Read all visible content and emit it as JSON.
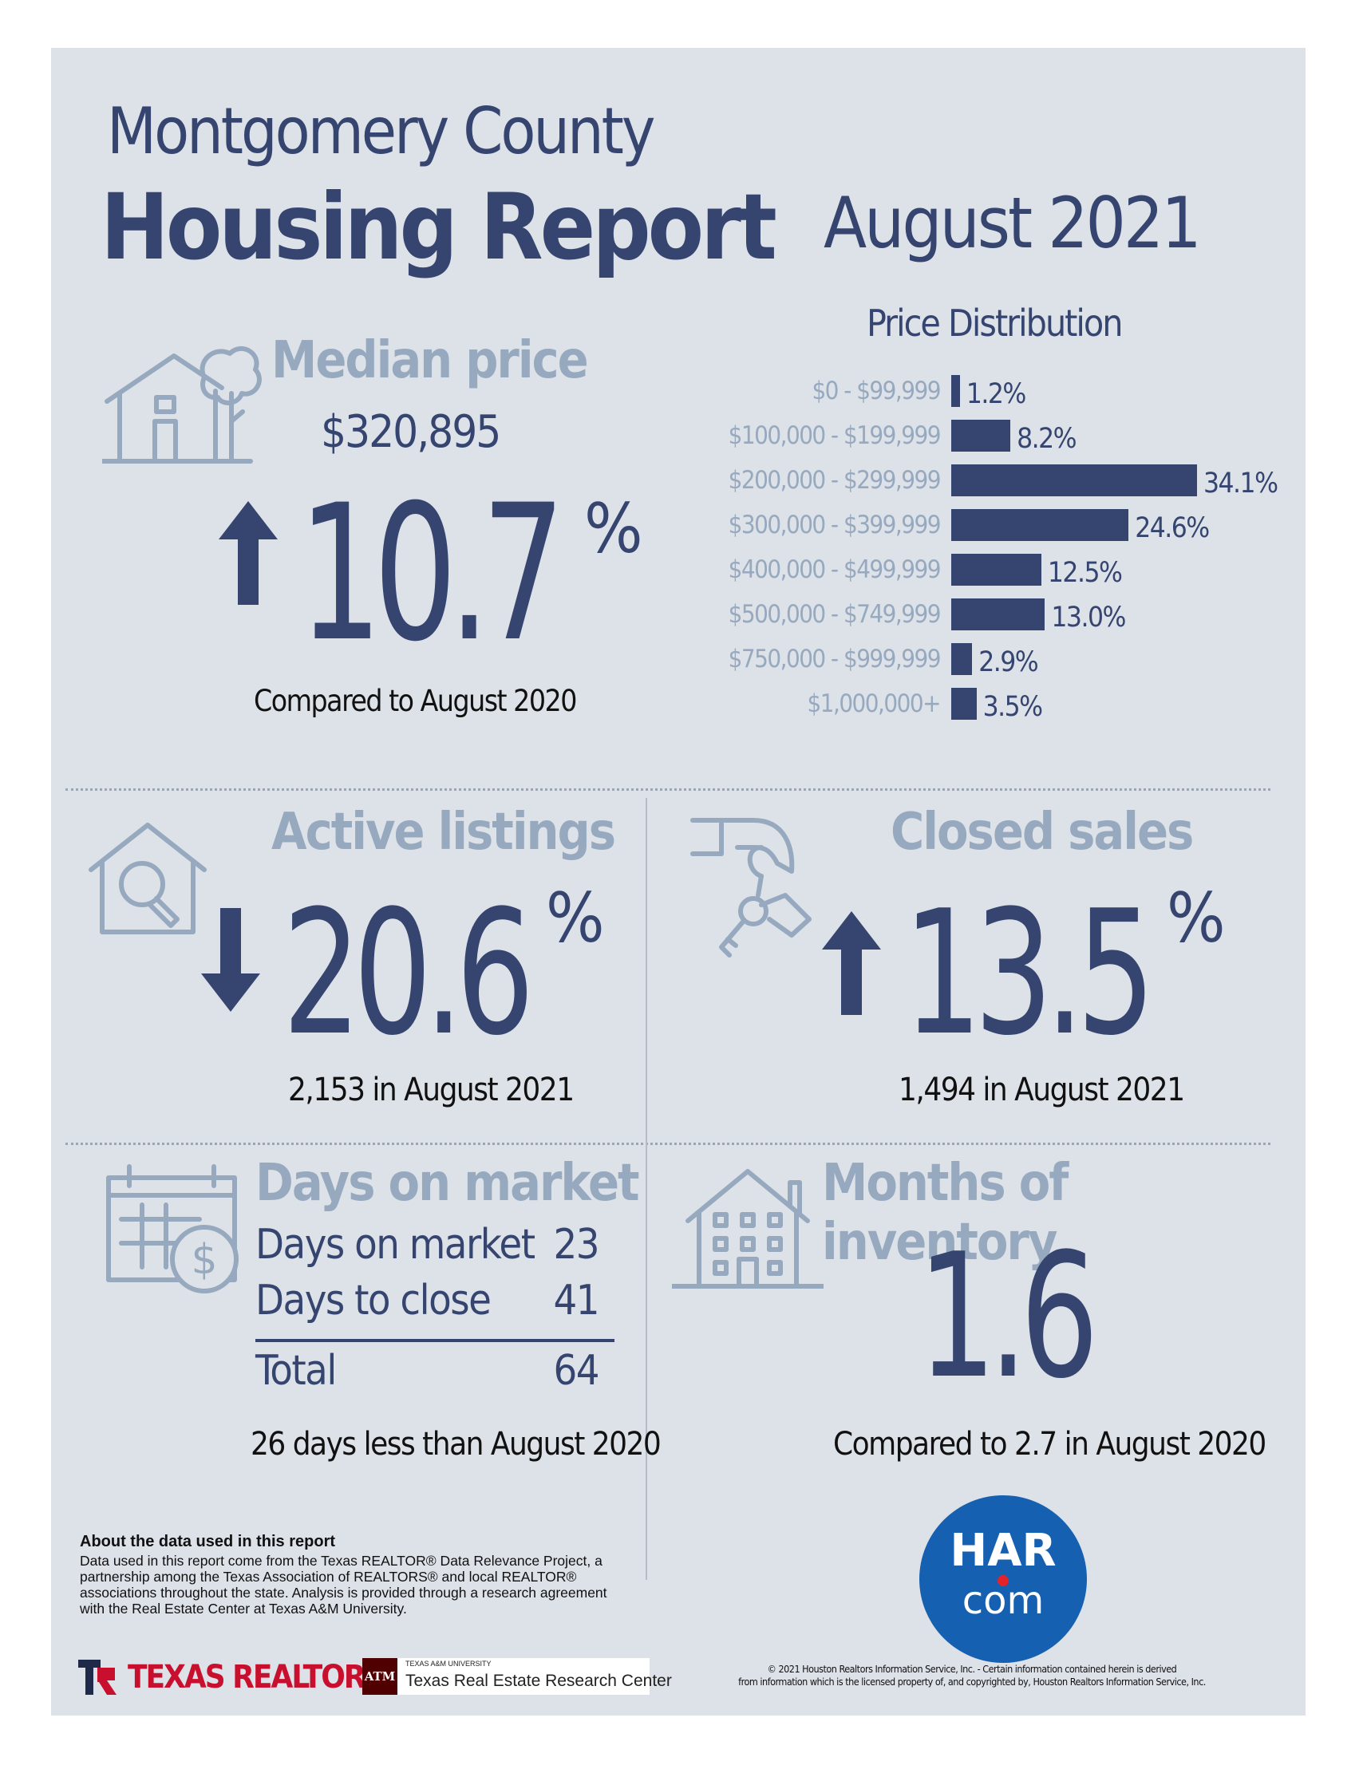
{
  "header": {
    "county": "Montgomery County",
    "title": "Housing Report",
    "period": "August 2021"
  },
  "median_price": {
    "title": "Median price",
    "value": "$320,895",
    "change_number": "10.7",
    "change_unit": "%",
    "direction": "up",
    "comparison": "Compared to August 2020",
    "icon": "house-tree-icon"
  },
  "price_distribution": {
    "title": "Price Distribution",
    "chart_data": {
      "type": "bar",
      "orientation": "horizontal",
      "title": "Price Distribution",
      "categories": [
        "$0 - $99,999",
        "$100,000 - $199,999",
        "$200,000 - $299,999",
        "$300,000 - $399,999",
        "$400,000 - $499,999",
        "$500,000 - $749,999",
        "$750,000 - $999,999",
        "$1,000,000+"
      ],
      "values": [
        1.2,
        8.2,
        34.1,
        24.6,
        12.5,
        13.0,
        2.9,
        3.5
      ],
      "value_labels": [
        "1.2%",
        "8.2%",
        "34.1%",
        "24.6%",
        "12.5%",
        "13.0%",
        "2.9%",
        "3.5%"
      ],
      "bar_color": "#35456f"
    }
  },
  "active_listings": {
    "title": "Active listings",
    "change_number": "20.6",
    "change_unit": "%",
    "direction": "down",
    "detail": "2,153 in August 2021",
    "icon": "house-search-icon"
  },
  "closed_sales": {
    "title": "Closed sales",
    "change_number": "13.5",
    "change_unit": "%",
    "direction": "up",
    "detail": "1,494 in August 2021",
    "icon": "hand-keys-icon"
  },
  "days_on_market": {
    "title": "Days on market",
    "rows": [
      {
        "label": "Days on market",
        "value": "23"
      },
      {
        "label": "Days to close",
        "value": "41"
      }
    ],
    "total_label": "Total",
    "total_value": "64",
    "comparison": "26 days less than August 2020",
    "icon": "calendar-dollar-icon"
  },
  "months_inventory": {
    "title": "Months of inventory",
    "value": "1.6",
    "comparison": "Compared to 2.7 in August 2020",
    "icon": "apartment-house-icon"
  },
  "about": {
    "heading": "About the data used in this report",
    "body": "Data used in this report come from the Texas REALTOR® Data Relevance Project, a partnership among the Texas Association of REALTORS® and local REALTOR® associations throughout the state. Analysis is provided through a research agreement with the Real Estate Center at Texas A&M University."
  },
  "logos": {
    "texas_realtors": "TEXAS REALTORS",
    "tamu_small": "TEXAS A&M UNIVERSITY",
    "tamu_name": "Texas Real Estate Research Center",
    "tamu_mark": "ATM",
    "har_top": "HAR",
    "har_bottom": "com"
  },
  "copyright": {
    "line1": "© 2021 Houston Realtors Information Service, Inc. - Certain information contained herein is derived",
    "line2": "from information which is the licensed property of, and copyrighted by, Houston Realtors Information Service, Inc."
  },
  "colors": {
    "navy": "#35456f",
    "muted": "#97a9be",
    "background": "#dde1e8",
    "har_blue": "#1560b0",
    "har_dot": "#e2232a",
    "tamu_maroon": "#500000",
    "tx_red": "#c8102e"
  }
}
